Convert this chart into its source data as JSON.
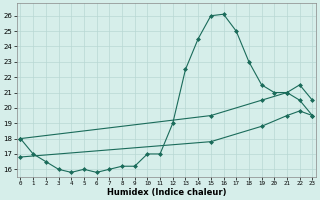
{
  "xlabel": "Humidex (Indice chaleur)",
  "bg_color": "#d6eeea",
  "grid_color": "#b8d8d4",
  "line_color": "#1a6b5a",
  "x_ticks": [
    0,
    1,
    2,
    3,
    4,
    5,
    6,
    7,
    8,
    9,
    10,
    11,
    12,
    13,
    14,
    15,
    16,
    17,
    18,
    19,
    20,
    21,
    22,
    23
  ],
  "y_ticks": [
    16,
    17,
    18,
    19,
    20,
    21,
    22,
    23,
    24,
    25,
    26
  ],
  "xlim": [
    -0.3,
    23.3
  ],
  "ylim": [
    15.5,
    26.8
  ],
  "line1_x": [
    0,
    1,
    2,
    3,
    4,
    5,
    6,
    7,
    8,
    9,
    10,
    11,
    12,
    13,
    14,
    15,
    16,
    17,
    18,
    19,
    20,
    21,
    22,
    23
  ],
  "line1_y": [
    18.0,
    17.0,
    16.5,
    16.0,
    15.8,
    16.0,
    15.8,
    16.0,
    16.2,
    16.2,
    17.0,
    17.0,
    19.0,
    22.5,
    24.5,
    26.0,
    26.1,
    25.0,
    23.0,
    21.5,
    21.0,
    21.0,
    20.5,
    19.5
  ],
  "line2_x": [
    0,
    15,
    19,
    21,
    22,
    23
  ],
  "line2_y": [
    18.0,
    19.5,
    20.5,
    21.0,
    21.5,
    20.5
  ],
  "line3_x": [
    0,
    15,
    19,
    21,
    22,
    23
  ],
  "line3_y": [
    16.8,
    17.8,
    18.8,
    19.5,
    19.8,
    19.5
  ]
}
